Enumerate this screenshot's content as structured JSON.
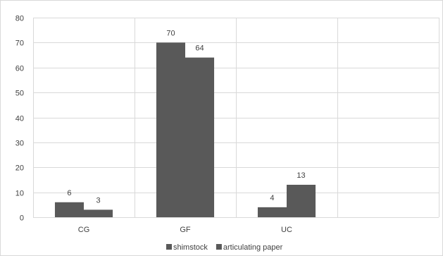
{
  "chart_data": {
    "type": "bar",
    "categories": [
      "CG",
      "GF",
      "UC",
      ""
    ],
    "series": [
      {
        "name": "shimstock",
        "values": [
          6,
          70,
          4,
          null
        ],
        "color": "#595959"
      },
      {
        "name": "articulating paper",
        "values": [
          3,
          64,
          13,
          null
        ],
        "color": "#595959"
      }
    ],
    "ylim": [
      0,
      80
    ],
    "yticks": [
      0,
      10,
      20,
      30,
      40,
      50,
      60,
      70,
      80
    ],
    "grid": true,
    "legend": "bottom"
  }
}
